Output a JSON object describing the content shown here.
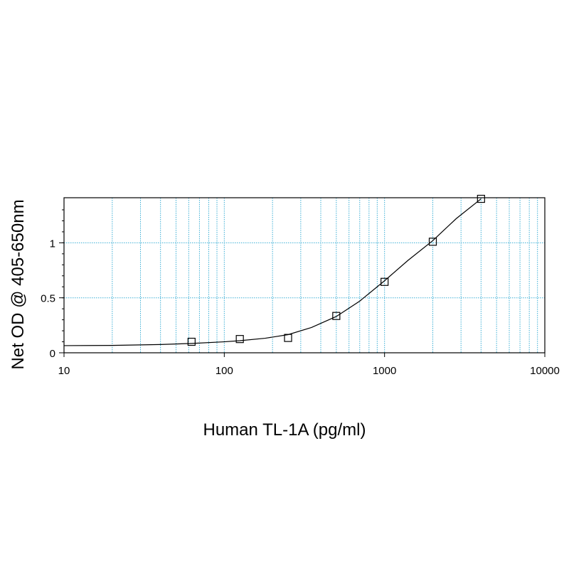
{
  "chart_data": {
    "type": "scatter",
    "title": "",
    "xlabel": "Human TL-1A (pg/ml)",
    "ylabel": "Net OD @ 405-650nm",
    "x_scale": "log",
    "xlim": [
      10,
      10000
    ],
    "ylim": [
      0,
      1.4
    ],
    "x_ticks": [
      "10",
      "100",
      "1000",
      "10000"
    ],
    "y_ticks": [
      "0",
      "0.5",
      "1"
    ],
    "grid": true,
    "grid_color": "#3fb0d6",
    "legend": "none",
    "series": [
      {
        "marker": "open-square",
        "x": [
          62.5,
          125,
          250,
          500,
          1000,
          2000,
          4000
        ],
        "y": [
          0.1,
          0.125,
          0.135,
          0.335,
          0.645,
          1.01,
          1.4
        ]
      }
    ],
    "fit_curve": {
      "x": [
        10,
        20,
        40,
        62.5,
        100,
        125,
        180,
        250,
        350,
        500,
        700,
        1000,
        1400,
        2000,
        2800,
        4000
      ],
      "y": [
        0.065,
        0.067,
        0.075,
        0.085,
        0.1,
        0.11,
        0.132,
        0.165,
        0.23,
        0.33,
        0.47,
        0.655,
        0.84,
        1.02,
        1.22,
        1.4
      ]
    }
  }
}
